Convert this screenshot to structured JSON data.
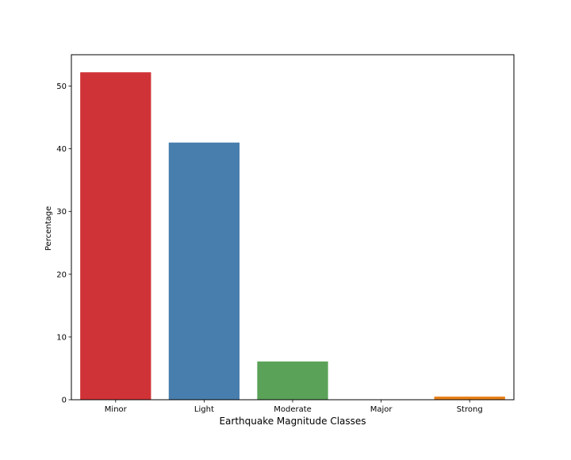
{
  "chart_data": {
    "type": "bar",
    "title": "",
    "xlabel": "Earthquake Magnitude Classes",
    "ylabel": "Percentage",
    "categories": [
      "Minor",
      "Light",
      "Moderate",
      "Major",
      "Strong"
    ],
    "values": [
      52.2,
      41.0,
      6.1,
      0.0,
      0.5
    ],
    "colors": [
      "#d03337",
      "#487eae",
      "#5aa258",
      "#8e5aa2",
      "#e88019"
    ],
    "ylim": [
      0,
      55
    ],
    "yticks": [
      0,
      10,
      20,
      30,
      40,
      50
    ],
    "ytick_labels": [
      "0",
      "10",
      "20",
      "30",
      "40",
      "50"
    ],
    "grid": false,
    "legend": "none"
  }
}
